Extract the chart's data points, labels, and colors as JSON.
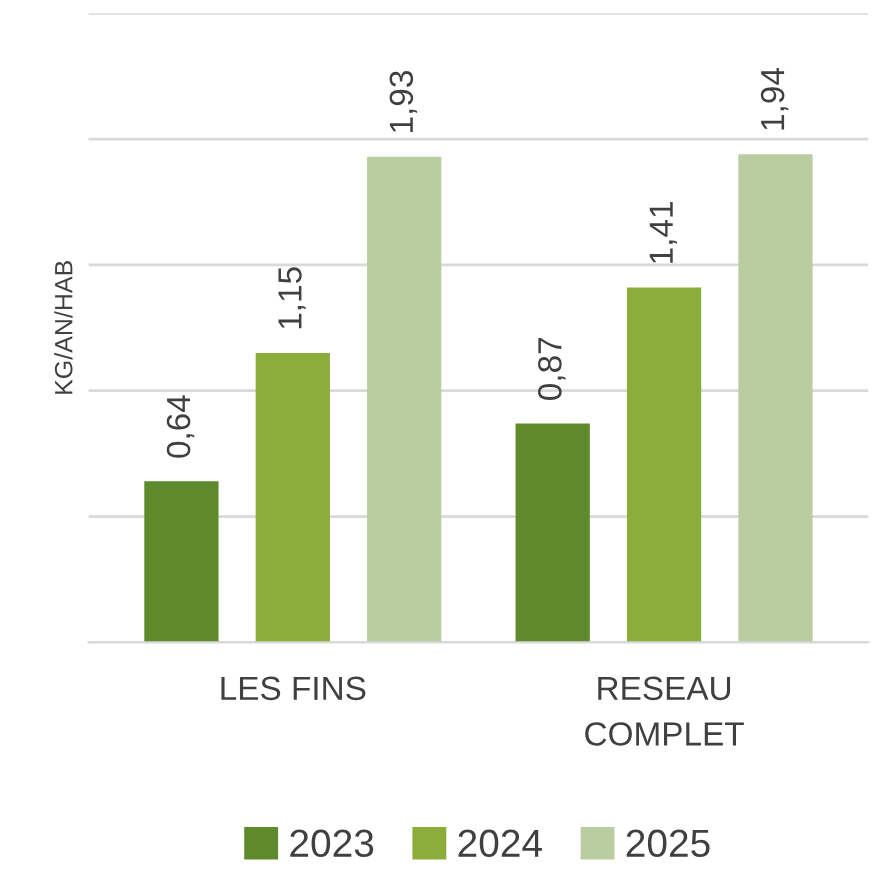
{
  "chart_data": {
    "type": "bar",
    "ylabel": "KG/AN/HAB",
    "categories": [
      "LES FINS",
      "RESEAU\nCOMPLET"
    ],
    "series": [
      {
        "name": "2023",
        "color": "#5f8a2c",
        "values": [
          0.64,
          0.87
        ],
        "value_labels": [
          "0,64",
          "0,87"
        ]
      },
      {
        "name": "2024",
        "color": "#8aad3b",
        "values": [
          1.15,
          1.41
        ],
        "value_labels": [
          "1,15",
          "1,41"
        ]
      },
      {
        "name": "2025",
        "color": "#b9cda0",
        "values": [
          1.93,
          1.94
        ],
        "value_labels": [
          "1,93",
          "1,94"
        ]
      }
    ],
    "ylim": [
      0,
      2.5
    ],
    "yticks": [
      {
        "value": 0,
        "label": null
      },
      {
        "value": 0.5,
        "label": null
      },
      {
        "value": 1,
        "label": null
      },
      {
        "value": 1.5,
        "label": null
      },
      {
        "value": 2,
        "label": null
      },
      {
        "value": 2.5,
        "label": null
      }
    ],
    "tick_labels": "x",
    "grid": "y",
    "legend": "bottom"
  }
}
